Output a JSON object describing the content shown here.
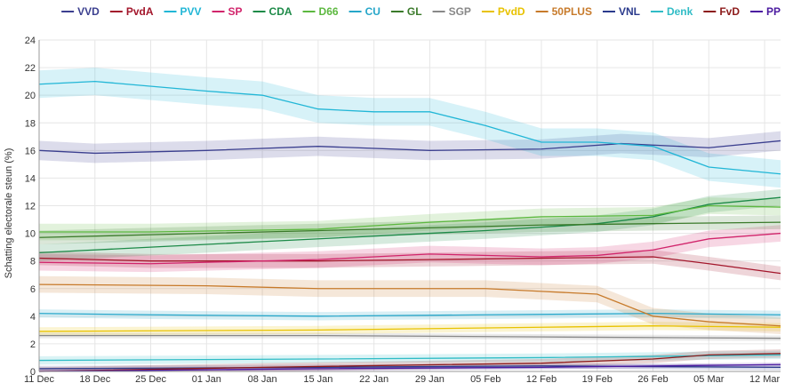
{
  "chart_data": {
    "type": "line",
    "ylabel": "Schatting electorale steun (%)",
    "ylim": [
      0,
      24
    ],
    "yticks": [
      0,
      2,
      4,
      6,
      8,
      10,
      12,
      14,
      16,
      18,
      20,
      22,
      24
    ],
    "x_start": "2016-12-11",
    "x_end": "2017-03-14",
    "xticks": [
      "11 Dec",
      "18 Dec",
      "25 Dec",
      "01 Jan",
      "08 Jan",
      "15 Jan",
      "22 Jan",
      "29 Jan",
      "05 Feb",
      "12 Feb",
      "19 Feb",
      "26 Feb",
      "05 Mar",
      "12 Mar"
    ],
    "grid": true,
    "legend_position": "top-right",
    "series": [
      {
        "name": "VVD",
        "color": "#3b3f8f",
        "band": 0.7,
        "points": [
          [
            "2016-12-11",
            16.0
          ],
          [
            "2016-12-18",
            15.8
          ],
          [
            "2017-01-01",
            16.0
          ],
          [
            "2017-01-15",
            16.3
          ],
          [
            "2017-01-29",
            16.0
          ],
          [
            "2017-02-12",
            16.1
          ],
          [
            "2017-02-22",
            16.5
          ],
          [
            "2017-03-05",
            16.2
          ],
          [
            "2017-03-14",
            16.7
          ]
        ]
      },
      {
        "name": "PvdA",
        "color": "#a3162b",
        "band": 0.5,
        "points": [
          [
            "2016-12-11",
            8.2
          ],
          [
            "2016-12-25",
            8.0
          ],
          [
            "2017-01-15",
            8.0
          ],
          [
            "2017-01-29",
            8.1
          ],
          [
            "2017-02-12",
            8.2
          ],
          [
            "2017-02-26",
            8.3
          ],
          [
            "2017-03-05",
            7.8
          ],
          [
            "2017-03-14",
            7.1
          ]
        ]
      },
      {
        "name": "PVV",
        "color": "#21b6d6",
        "band": 1.0,
        "points": [
          [
            "2016-12-11",
            20.8
          ],
          [
            "2016-12-18",
            21.0
          ],
          [
            "2017-01-01",
            20.3
          ],
          [
            "2017-01-08",
            20.0
          ],
          [
            "2017-01-15",
            19.0
          ],
          [
            "2017-01-22",
            18.8
          ],
          [
            "2017-01-29",
            18.8
          ],
          [
            "2017-02-05",
            17.8
          ],
          [
            "2017-02-12",
            16.6
          ],
          [
            "2017-02-19",
            16.6
          ],
          [
            "2017-02-26",
            16.3
          ],
          [
            "2017-03-05",
            14.8
          ],
          [
            "2017-03-14",
            14.3
          ]
        ]
      },
      {
        "name": "SP",
        "color": "#d1246b",
        "band": 0.6,
        "points": [
          [
            "2016-12-11",
            7.9
          ],
          [
            "2016-12-25",
            7.8
          ],
          [
            "2017-01-15",
            8.1
          ],
          [
            "2017-01-29",
            8.5
          ],
          [
            "2017-02-12",
            8.3
          ],
          [
            "2017-02-19",
            8.4
          ],
          [
            "2017-02-26",
            8.8
          ],
          [
            "2017-03-05",
            9.6
          ],
          [
            "2017-03-14",
            10.0
          ]
        ]
      },
      {
        "name": "CDA",
        "color": "#1d8a48",
        "band": 0.6,
        "points": [
          [
            "2016-12-11",
            8.6
          ],
          [
            "2016-12-25",
            9.0
          ],
          [
            "2017-01-08",
            9.4
          ],
          [
            "2017-01-22",
            9.8
          ],
          [
            "2017-02-05",
            10.2
          ],
          [
            "2017-02-19",
            10.7
          ],
          [
            "2017-02-26",
            11.2
          ],
          [
            "2017-03-05",
            12.1
          ],
          [
            "2017-03-14",
            12.6
          ]
        ]
      },
      {
        "name": "D66",
        "color": "#5cb83f",
        "band": 0.6,
        "points": [
          [
            "2016-12-11",
            10.1
          ],
          [
            "2016-12-25",
            10.1
          ],
          [
            "2017-01-15",
            10.3
          ],
          [
            "2017-01-29",
            10.8
          ],
          [
            "2017-02-12",
            11.2
          ],
          [
            "2017-02-26",
            11.3
          ],
          [
            "2017-03-05",
            12.0
          ],
          [
            "2017-03-14",
            11.9
          ]
        ]
      },
      {
        "name": "CU",
        "color": "#26a6c9",
        "band": 0.3,
        "points": [
          [
            "2016-12-11",
            4.2
          ],
          [
            "2016-12-25",
            4.1
          ],
          [
            "2017-01-15",
            4.0
          ],
          [
            "2017-02-05",
            4.1
          ],
          [
            "2017-02-26",
            4.2
          ],
          [
            "2017-03-14",
            4.1
          ]
        ]
      },
      {
        "name": "GL",
        "color": "#3a7a2a",
        "band": 0.5,
        "points": [
          [
            "2016-12-11",
            9.7
          ],
          [
            "2016-12-25",
            9.9
          ],
          [
            "2017-01-15",
            10.2
          ],
          [
            "2017-01-29",
            10.4
          ],
          [
            "2017-02-12",
            10.6
          ],
          [
            "2017-02-26",
            10.7
          ],
          [
            "2017-03-14",
            10.8
          ]
        ]
      },
      {
        "name": "SGP",
        "color": "#888888",
        "band": 0.2,
        "points": [
          [
            "2016-12-11",
            2.6
          ],
          [
            "2017-01-15",
            2.6
          ],
          [
            "2017-02-12",
            2.5
          ],
          [
            "2017-03-14",
            2.4
          ]
        ]
      },
      {
        "name": "PvdD",
        "color": "#e8c200",
        "band": 0.3,
        "points": [
          [
            "2016-12-11",
            2.9
          ],
          [
            "2017-01-15",
            3.0
          ],
          [
            "2017-02-12",
            3.2
          ],
          [
            "2017-02-26",
            3.3
          ],
          [
            "2017-03-14",
            3.2
          ]
        ]
      },
      {
        "name": "50PLUS",
        "color": "#c77a2a",
        "band": 0.6,
        "points": [
          [
            "2016-12-11",
            6.3
          ],
          [
            "2017-01-01",
            6.2
          ],
          [
            "2017-01-15",
            6.0
          ],
          [
            "2017-02-05",
            6.0
          ],
          [
            "2017-02-12",
            5.8
          ],
          [
            "2017-02-19",
            5.6
          ],
          [
            "2017-02-26",
            4.0
          ],
          [
            "2017-03-05",
            3.6
          ],
          [
            "2017-03-14",
            3.3
          ]
        ]
      },
      {
        "name": "VNL",
        "color": "#2a3a8c",
        "band": 0.2,
        "points": [
          [
            "2016-12-11",
            0.2
          ],
          [
            "2017-01-15",
            0.3
          ],
          [
            "2017-02-12",
            0.4
          ],
          [
            "2017-03-14",
            0.3
          ]
        ]
      },
      {
        "name": "Denk",
        "color": "#30bcc6",
        "band": 0.3,
        "points": [
          [
            "2016-12-11",
            0.8
          ],
          [
            "2017-01-15",
            0.9
          ],
          [
            "2017-02-12",
            1.0
          ],
          [
            "2017-03-14",
            1.2
          ]
        ]
      },
      {
        "name": "FvD",
        "color": "#8c1a1a",
        "band": 0.3,
        "points": [
          [
            "2016-12-11",
            0.0
          ],
          [
            "2017-01-08",
            0.3
          ],
          [
            "2017-02-12",
            0.6
          ],
          [
            "2017-02-26",
            0.9
          ],
          [
            "2017-03-05",
            1.2
          ],
          [
            "2017-03-14",
            1.3
          ]
        ]
      },
      {
        "name": "PP",
        "color": "#4b1aa0",
        "band": 0.15,
        "points": [
          [
            "2016-12-11",
            0.0
          ],
          [
            "2017-01-15",
            0.2
          ],
          [
            "2017-02-12",
            0.3
          ],
          [
            "2017-03-14",
            0.5
          ]
        ]
      }
    ]
  }
}
